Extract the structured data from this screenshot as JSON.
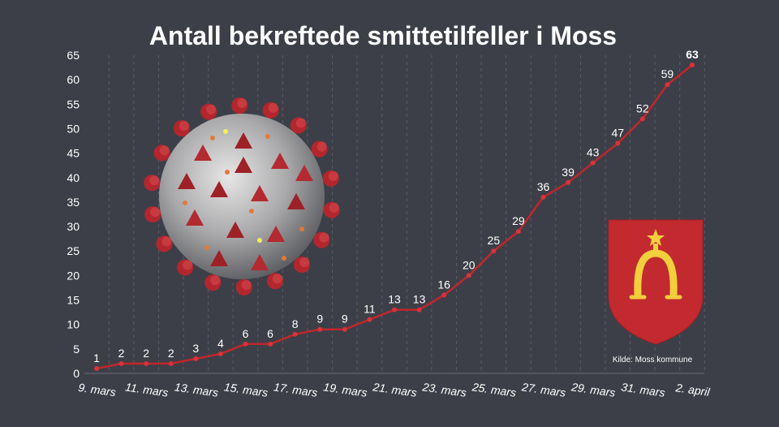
{
  "chart_data": {
    "type": "line",
    "title": "Antall bekreftede smittetilfeller i Moss",
    "categories": [
      "9. mars",
      "10. mars",
      "11. mars",
      "12. mars",
      "13. mars",
      "14. mars",
      "15. mars",
      "16. mars",
      "17. mars",
      "18. mars",
      "19. mars",
      "20. mars",
      "21. mars",
      "22. mars",
      "23. mars",
      "24. mars",
      "25. mars",
      "26. mars",
      "27. mars",
      "28. mars",
      "29. mars",
      "30. mars",
      "31. mars",
      "1. april",
      "2. april"
    ],
    "x_tick_labels": [
      "9. mars",
      "11. mars",
      "13. mars",
      "15. mars",
      "17. mars",
      "19. mars",
      "21. mars",
      "23. mars",
      "25. mars",
      "27. mars",
      "29. mars",
      "31. mars",
      "2. april"
    ],
    "series": [
      {
        "values": [
          1,
          2,
          2,
          2,
          3,
          4,
          6,
          6,
          8,
          9,
          9,
          11,
          13,
          13,
          16,
          20,
          25,
          29,
          36,
          39,
          43,
          47,
          52,
          59,
          63
        ]
      }
    ],
    "ylim": [
      0,
      65
    ],
    "y_ticks": [
      0,
      5,
      10,
      15,
      20,
      25,
      30,
      35,
      40,
      45,
      50,
      55,
      60,
      65
    ],
    "grid": "vertical dashed",
    "line_color": "#c0262c",
    "marker_color": "#d8333a",
    "source": "Kilde: Moss kommune"
  },
  "colors": {
    "background": "#3d3f48",
    "grid": "#5a5c66",
    "crest_red": "#c22a30",
    "crest_gold": "#f2cf3c"
  },
  "images": {
    "virus": "coronavirus-illustration",
    "crest": "moss-coat-of-arms"
  }
}
